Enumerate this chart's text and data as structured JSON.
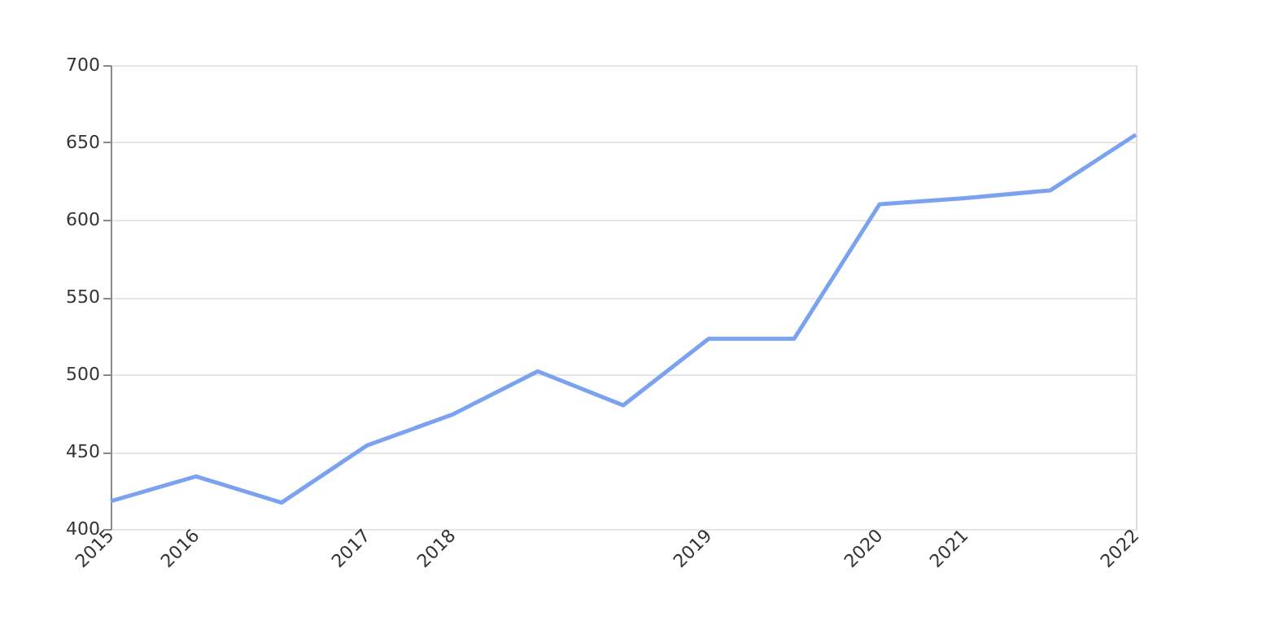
{
  "chart_data": {
    "type": "line",
    "categories": [
      "2015",
      "2016",
      null,
      "2017",
      "2018",
      null,
      null,
      "2019",
      null,
      "2020",
      "2021",
      null,
      "2022"
    ],
    "series": [
      {
        "color": "#7aa2f0",
        "values": [
          418,
          434,
          417,
          454,
          474,
          502,
          480,
          523,
          523,
          610,
          614,
          619,
          655
        ]
      }
    ],
    "ylim": [
      400,
      700
    ],
    "yticks": [
      400,
      450,
      500,
      550,
      600,
      650,
      700
    ],
    "grid": "y",
    "legend": false,
    "marker": "none",
    "line_style": "solid"
  }
}
